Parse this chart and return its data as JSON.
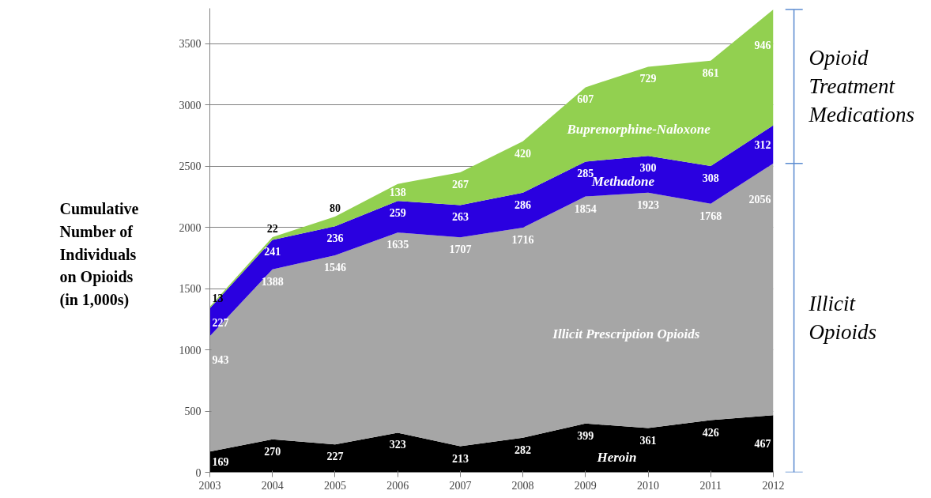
{
  "chart_data": {
    "type": "area",
    "stacked": true,
    "ylabel": "Cumulative Number of Individuals on Opioids (in 1,000s)",
    "x": [
      2003,
      2004,
      2005,
      2006,
      2007,
      2008,
      2009,
      2010,
      2011,
      2012
    ],
    "xlim": [
      2003,
      2012
    ],
    "xticks": [
      2003,
      2004,
      2005,
      2006,
      2007,
      2008,
      2009,
      2010,
      2011,
      2012
    ],
    "ylim": [
      0,
      3790
    ],
    "yticks": [
      0,
      500,
      1000,
      1500,
      2000,
      2500,
      3000,
      3500
    ],
    "grid": "y",
    "legend": false,
    "data_labels": true,
    "series": [
      {
        "name": "Heroin",
        "color": "#000000",
        "values": [
          169,
          270,
          227,
          323,
          213,
          282,
          399,
          361,
          426,
          467
        ]
      },
      {
        "name": "Illicit Prescription Opioids",
        "color": "#a6a6a6",
        "values": [
          943,
          1388,
          1546,
          1635,
          1707,
          1716,
          1854,
          1923,
          1768,
          2056
        ]
      },
      {
        "name": "Methadone",
        "color": "#2a00e0",
        "values": [
          227,
          241,
          236,
          259,
          263,
          286,
          285,
          300,
          308,
          312
        ]
      },
      {
        "name": "Buprenorphine-Naloxone",
        "color": "#92d050",
        "values": [
          13,
          22,
          80,
          138,
          267,
          420,
          607,
          729,
          861,
          946
        ]
      }
    ],
    "annotations": [
      "Opioid Treatment Medications",
      "Illicit Opioids"
    ]
  }
}
